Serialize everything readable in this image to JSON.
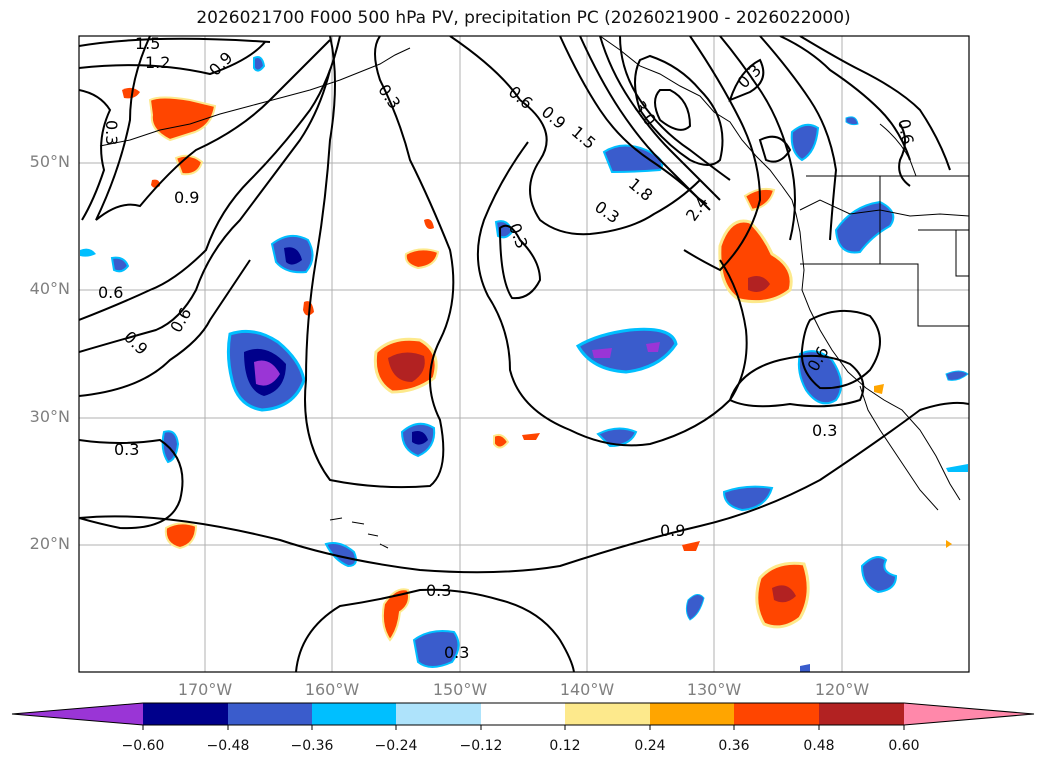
{
  "title": "2026021700 F000 500 hPa PV, precipitation PC (2026021900 - 2026022000)",
  "map": {
    "lat_labels": [
      "50°N",
      "40°N",
      "30°N",
      "20°N"
    ],
    "lon_labels": [
      "170°W",
      "160°W",
      "150°W",
      "140°W",
      "130°W",
      "120°W"
    ]
  },
  "contour_labels": [
    "1.5",
    "1.2",
    "0.9",
    "0.3",
    "0.6",
    "0.9",
    "1.5",
    "1.8",
    "3.0",
    "2.4",
    "0.3",
    "0.3",
    "0.6",
    "0.9",
    "0.6",
    "0.6",
    "0.9",
    "0.3",
    "0.3",
    "0.3",
    "0.3",
    "0.6",
    "0.9",
    "0.3",
    "0.3"
  ],
  "colorbar": {
    "ticks": [
      "−0.60",
      "−0.48",
      "−0.36",
      "−0.24",
      "−0.12",
      "0.12",
      "0.24",
      "0.36",
      "0.48",
      "0.60"
    ],
    "colors": {
      "under": "#9a35d6",
      "c1": "#9a35d6",
      "c2": "#00008b",
      "c3": "#3a5ccc",
      "c4": "#00bfff",
      "c5": "#aee3fb",
      "c6": "#ffffff",
      "c7": "#fde98c",
      "c8": "#ffa500",
      "c9": "#ff4500",
      "c10": "#b22222",
      "c11": "#ff88aa",
      "over": "#ff88aa"
    }
  }
}
